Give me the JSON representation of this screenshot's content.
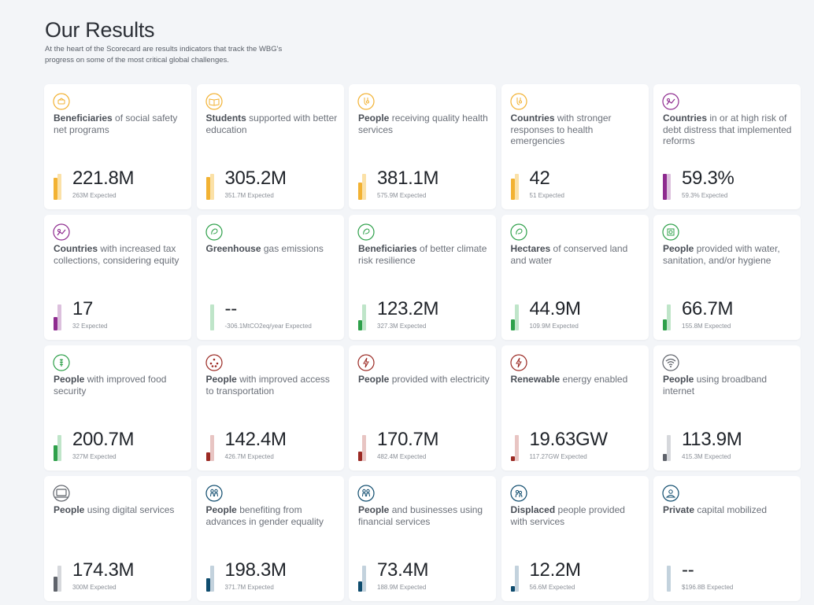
{
  "header": {
    "title": "Our Results",
    "subtitle": "At the heart of the Scorecard are results indicators that track the WBG's progress on some of the most critical global challenges."
  },
  "cards": [
    {
      "icon": "safety-net-icon",
      "color": "#f2b233",
      "light": "#fbe1a7",
      "bold": "Beneficiaries",
      "rest": " of social safety net programs",
      "value": "221.8M",
      "expected": "263M Expected",
      "progress": 0.84
    },
    {
      "icon": "book-icon",
      "color": "#f2b233",
      "light": "#fbe1a7",
      "bold": "Students",
      "rest": " supported with better education",
      "value": "305.2M",
      "expected": "351.7M Expected",
      "progress": 0.87
    },
    {
      "icon": "health-icon",
      "color": "#f2b233",
      "light": "#fbe1a7",
      "bold": "People",
      "rest": " receiving quality health services",
      "value": "381.1M",
      "expected": "575.9M Expected",
      "progress": 0.66
    },
    {
      "icon": "emergency-health-icon",
      "color": "#f2b233",
      "light": "#fbe1a7",
      "bold": "Countries",
      "rest": " with stronger responses to health emergencies",
      "value": "42",
      "expected": "51 Expected",
      "progress": 0.82
    },
    {
      "icon": "debt-chart-icon",
      "color": "#8e2b8f",
      "light": "#dcc0dd",
      "bold": "Countries",
      "rest": " in or at high risk of debt distress that implemented reforms",
      "value": "59.3%",
      "expected": "59.3% Expected",
      "progress": 1.0
    },
    {
      "icon": "tax-chart-icon",
      "color": "#8e2b8f",
      "light": "#dcc0dd",
      "bold": "Countries",
      "rest": " with increased tax collections, considering equity",
      "value": "17",
      "expected": "32 Expected",
      "progress": 0.53
    },
    {
      "icon": "globe-leaf-icon",
      "color": "#2ea04a",
      "light": "#bfe5c9",
      "bold": "Greenhouse",
      "rest": " gas emissions",
      "value": "--",
      "expected": "-306.1MtCO2eq/year Expected",
      "progress": 0.0
    },
    {
      "icon": "climate-resilience-icon",
      "color": "#2ea04a",
      "light": "#bfe5c9",
      "bold": "Beneficiaries",
      "rest": " of better climate risk resilience",
      "value": "123.2M",
      "expected": "327.3M Expected",
      "progress": 0.38
    },
    {
      "icon": "land-water-icon",
      "color": "#2ea04a",
      "light": "#bfe5c9",
      "bold": "Hectares",
      "rest": " of conserved land and water",
      "value": "44.9M",
      "expected": "109.9M Expected",
      "progress": 0.41
    },
    {
      "icon": "water-sanitation-icon",
      "color": "#2ea04a",
      "light": "#bfe5c9",
      "bold": "People",
      "rest": " provided with water, sanitation, and/or hygiene",
      "value": "66.7M",
      "expected": "155.8M Expected",
      "progress": 0.43
    },
    {
      "icon": "wheat-icon",
      "color": "#2ea04a",
      "light": "#bfe5c9",
      "bold": "People",
      "rest": " with improved food security",
      "value": "200.7M",
      "expected": "327M Expected",
      "progress": 0.61
    },
    {
      "icon": "transport-network-icon",
      "color": "#9b2a24",
      "light": "#e8c5c3",
      "bold": "People",
      "rest": " with improved access to transportation",
      "value": "142.4M",
      "expected": "426.7M Expected",
      "progress": 0.33
    },
    {
      "icon": "lightning-icon",
      "color": "#9b2a24",
      "light": "#e8c5c3",
      "bold": "People",
      "rest": " provided with electricity",
      "value": "170.7M",
      "expected": "482.4M Expected",
      "progress": 0.35
    },
    {
      "icon": "lightning-icon",
      "color": "#9b2a24",
      "light": "#e8c5c3",
      "bold": "Renewable",
      "rest": " energy enabled",
      "value": "19.63GW",
      "expected": "117.27GW Expected",
      "progress": 0.17
    },
    {
      "icon": "wifi-icon",
      "color": "#5f636b",
      "light": "#d6d8dc",
      "bold": "People",
      "rest": " using broadband internet",
      "value": "113.9M",
      "expected": "415.3M Expected",
      "progress": 0.27
    },
    {
      "icon": "laptop-icon",
      "color": "#5f636b",
      "light": "#d6d8dc",
      "bold": "People",
      "rest": " using digital services",
      "value": "174.3M",
      "expected": "300M Expected",
      "progress": 0.58
    },
    {
      "icon": "gender-equality-icon",
      "color": "#0f4c6e",
      "light": "#c3d2dd",
      "bold": "People",
      "rest": " benefiting from advances in gender equality",
      "value": "198.3M",
      "expected": "371.7M Expected",
      "progress": 0.53
    },
    {
      "icon": "financial-people-icon",
      "color": "#0f4c6e",
      "light": "#c3d2dd",
      "bold": "People",
      "rest": " and businesses using financial services",
      "value": "73.4M",
      "expected": "188.9M Expected",
      "progress": 0.39
    },
    {
      "icon": "displaced-people-icon",
      "color": "#0f4c6e",
      "light": "#c3d2dd",
      "bold": "Displaced",
      "rest": " people provided with services",
      "value": "12.2M",
      "expected": "56.6M Expected",
      "progress": 0.22
    },
    {
      "icon": "private-capital-icon",
      "color": "#0f4c6e",
      "light": "#c3d2dd",
      "bold": "Private",
      "rest": " capital mobilized",
      "value": "--",
      "expected": "$196.8B Expected",
      "progress": 0.0
    }
  ]
}
